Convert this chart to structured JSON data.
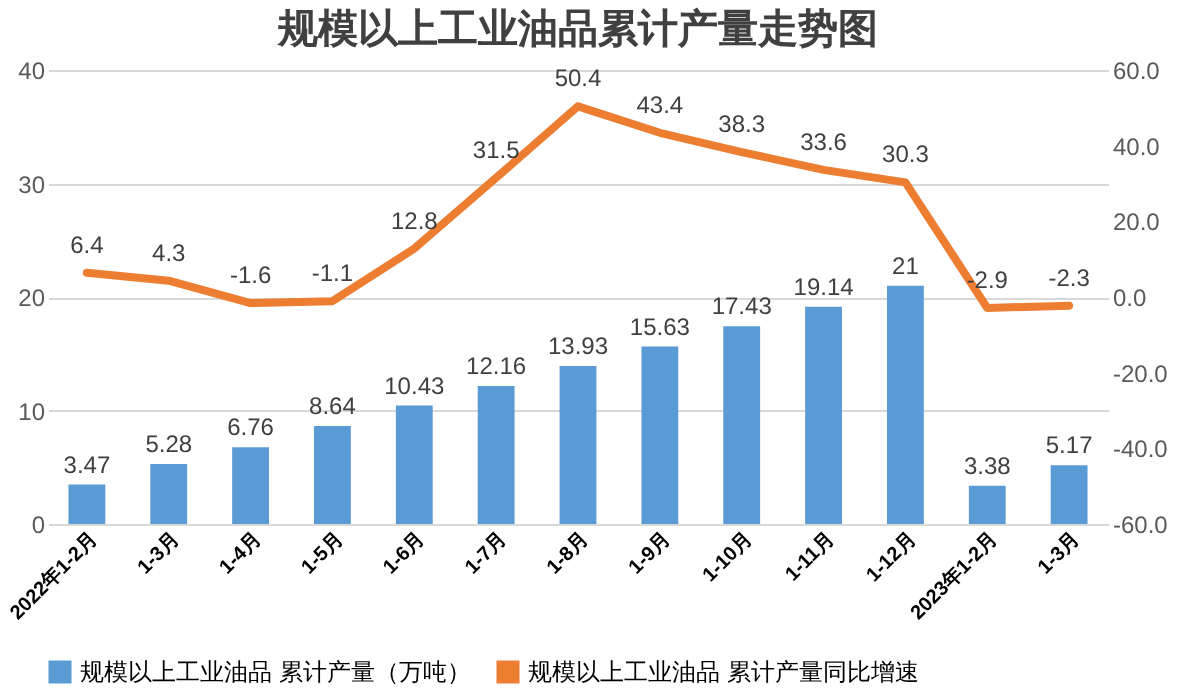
{
  "chart_data": {
    "type": "bar",
    "title": "规模以上工业油品累计产量走势图",
    "categories": [
      "2022年1-2月",
      "1-3月",
      "1-4月",
      "1-5月",
      "1-6月",
      "1-7月",
      "1-8月",
      "1-9月",
      "1-10月",
      "1-11月",
      "1-12月",
      "2023年1-2月",
      "1-3月"
    ],
    "series": [
      {
        "name": "规模以上工业油品 累计产量（万吨）",
        "color": "#5b9bd5",
        "values": [
          3.47,
          5.28,
          6.76,
          8.64,
          10.43,
          12.16,
          13.93,
          15.63,
          17.43,
          19.14,
          21,
          3.38,
          5.17
        ]
      },
      {
        "name": "规模以上工业油品 累计产量同比增速",
        "type": "line",
        "axis": "y2",
        "color": "#ed7d31",
        "values": [
          6.4,
          4.3,
          -1.6,
          -1.1,
          12.8,
          31.5,
          50.4,
          43.4,
          38.3,
          33.6,
          30.3,
          -2.9,
          -2.3
        ]
      }
    ],
    "ylim": [
      0,
      40
    ],
    "yticks": [
      0,
      10,
      20,
      30,
      40
    ],
    "y2lim": [
      -60,
      60
    ],
    "y2ticks": [
      {
        "value": -60,
        "label": "-60.0"
      },
      {
        "value": -40,
        "label": "-40.0"
      },
      {
        "value": -20,
        "label": "-20.0"
      },
      {
        "value": 0,
        "label": "0.0"
      },
      {
        "value": 20,
        "label": "20.0"
      },
      {
        "value": 40,
        "label": "40.0"
      },
      {
        "value": 60,
        "label": "60.0"
      }
    ],
    "grid": "y",
    "legend": "bottom",
    "data_labels": true
  }
}
